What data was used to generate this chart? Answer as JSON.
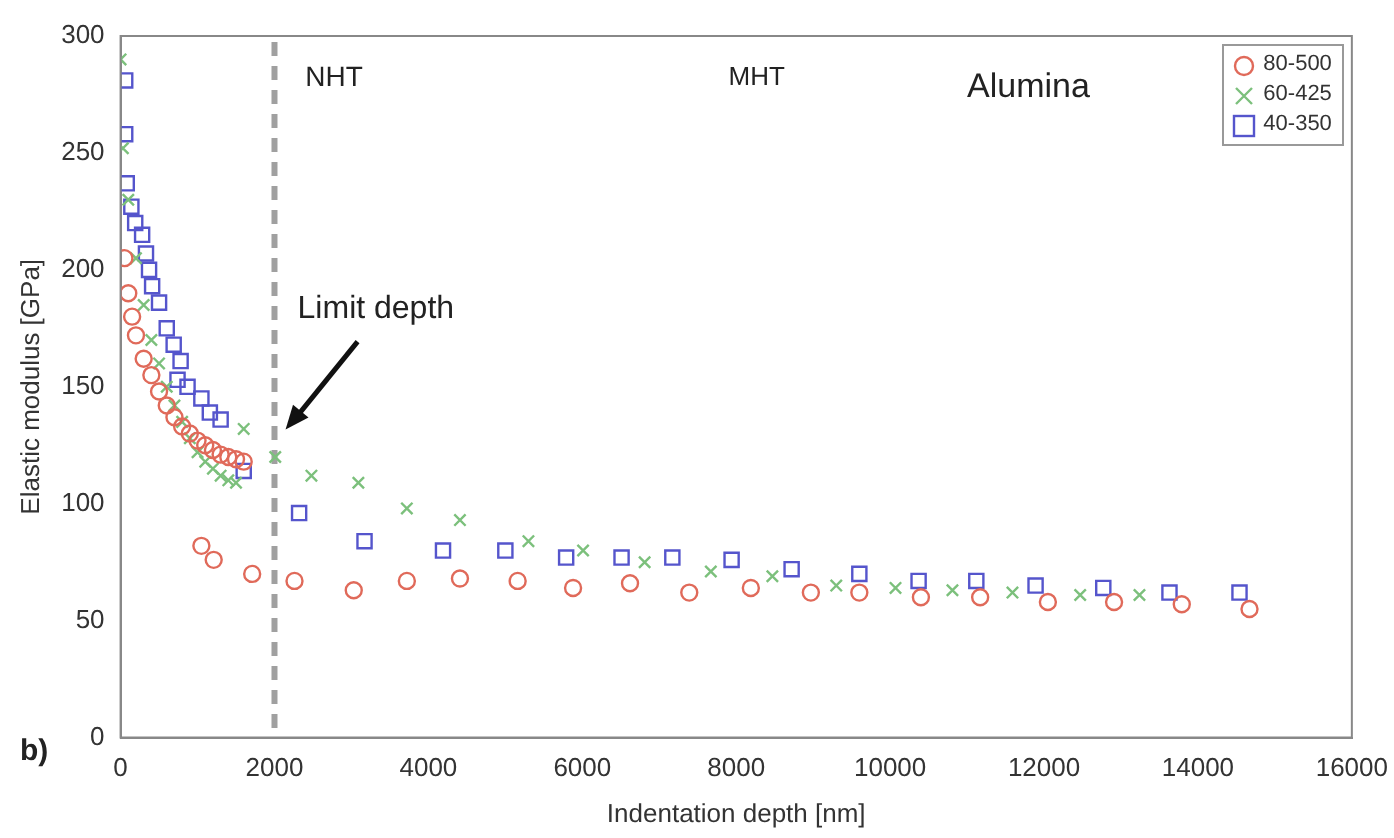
{
  "chart_data": {
    "type": "scatter",
    "xlabel": "Indentation depth [nm]",
    "ylabel": "Elastic modulus [GPa]",
    "xlim": [
      0,
      16000
    ],
    "ylim": [
      0,
      300
    ],
    "xticks": [
      0,
      2000,
      4000,
      6000,
      8000,
      10000,
      12000,
      14000,
      16000
    ],
    "yticks": [
      0,
      50,
      100,
      150,
      200,
      250,
      300
    ],
    "grid": false,
    "legend": "top right",
    "series": [
      {
        "name": "80-500",
        "color": "#e06a5a",
        "marker": "circle",
        "x": [
          50,
          100,
          150,
          200,
          300,
          400,
          500,
          600,
          700,
          800,
          900,
          1000,
          1100,
          1200,
          1300,
          1400,
          1500,
          1600,
          1050,
          1210,
          1710,
          2260,
          3030,
          3720,
          4410,
          5160,
          5880,
          6620,
          7390,
          8190,
          8970,
          9600,
          10400,
          11170,
          12050,
          12910,
          13790,
          14670
        ],
        "values": [
          205,
          190,
          180,
          172,
          162,
          155,
          148,
          142,
          137,
          133,
          130,
          127,
          125,
          123,
          121,
          120,
          119,
          118,
          82,
          76,
          70,
          67,
          63,
          67,
          68,
          67,
          64,
          66,
          62,
          64,
          62,
          62,
          60,
          60,
          58,
          58,
          57,
          55
        ]
      },
      {
        "name": "60-425",
        "color": "#7cc07c",
        "marker": "cross",
        "x": [
          0,
          30,
          100,
          200,
          300,
          400,
          500,
          600,
          700,
          800,
          900,
          1000,
          1100,
          1200,
          1300,
          1400,
          1500,
          1600,
          2010,
          2480,
          3090,
          3720,
          4410,
          5300,
          6010,
          6810,
          7670,
          8470,
          9300,
          10070,
          10810,
          11590,
          12470,
          13240
        ],
        "values": [
          290,
          252,
          230,
          205,
          185,
          170,
          160,
          150,
          142,
          135,
          128,
          122,
          118,
          115,
          112,
          110,
          109,
          132,
          120,
          112,
          109,
          98,
          93,
          84,
          80,
          75,
          71,
          69,
          65,
          64,
          63,
          62,
          61,
          61
        ]
      },
      {
        "name": "40-350",
        "color": "#5555cc",
        "marker": "square",
        "x": [
          60,
          60,
          80,
          140,
          190,
          280,
          330,
          370,
          410,
          500,
          600,
          690,
          780,
          740,
          870,
          1050,
          1160,
          1300,
          1600,
          2320,
          3170,
          4190,
          5000,
          5790,
          6510,
          7170,
          7940,
          8720,
          9600,
          10370,
          11120,
          11890,
          12770,
          13630,
          14540
        ],
        "values": [
          281,
          258,
          237,
          227,
          220,
          215,
          207,
          200,
          193,
          186,
          175,
          168,
          161,
          153,
          150,
          145,
          139,
          136,
          114,
          96,
          84,
          80,
          80,
          77,
          77,
          77,
          76,
          72,
          70,
          67,
          67,
          65,
          64,
          62,
          62
        ]
      }
    ],
    "ref_lines": [
      {
        "axis": "x",
        "value": 2000,
        "color": "#a0a0a0",
        "line_style": "dashed"
      }
    ],
    "annotations": [
      "NHT",
      "MHT",
      "Alumina",
      "b)",
      "Limit depth"
    ]
  }
}
